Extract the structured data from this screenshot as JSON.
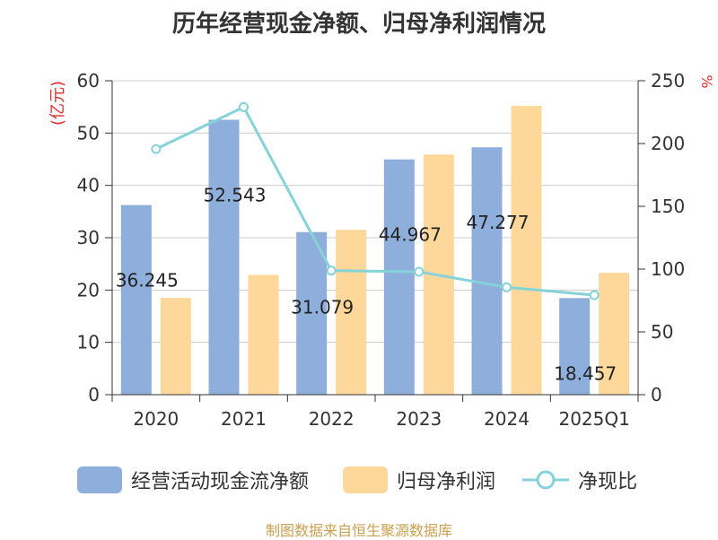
{
  "chart_data": {
    "type": "bar",
    "title": "历年经营现金净额、归母净利润情况",
    "categories": [
      "2020",
      "2021",
      "2022",
      "2023",
      "2024",
      "2025Q1"
    ],
    "ylabel": "(亿元)",
    "y2label": "%",
    "ylim": [
      0,
      60
    ],
    "y2lim": [
      0,
      250
    ],
    "yticks": [
      0,
      10,
      20,
      30,
      40,
      50,
      60
    ],
    "y2ticks": [
      0,
      50,
      100,
      150,
      200,
      250
    ],
    "grid": true,
    "legend_position": "bottom",
    "series": [
      {
        "name": "经营活动现金流净额",
        "type": "bar",
        "axis": "left",
        "color": "#8eaedb",
        "values": [
          36.245,
          52.543,
          31.079,
          44.967,
          47.277,
          18.457
        ],
        "labels": [
          "36.245",
          "52.543",
          "31.079",
          "44.967",
          "47.277",
          "18.457"
        ]
      },
      {
        "name": "归母净利润",
        "type": "bar",
        "axis": "left",
        "color": "#fdd89a",
        "values": [
          18.5,
          22.9,
          31.5,
          45.9,
          55.2,
          23.3
        ]
      },
      {
        "name": "净现比",
        "type": "line",
        "axis": "right",
        "color": "#85d3d8",
        "values": [
          195.6,
          229.0,
          98.8,
          97.9,
          85.5,
          79.3
        ]
      }
    ],
    "source": "制图数据来自恒生聚源数据库"
  }
}
